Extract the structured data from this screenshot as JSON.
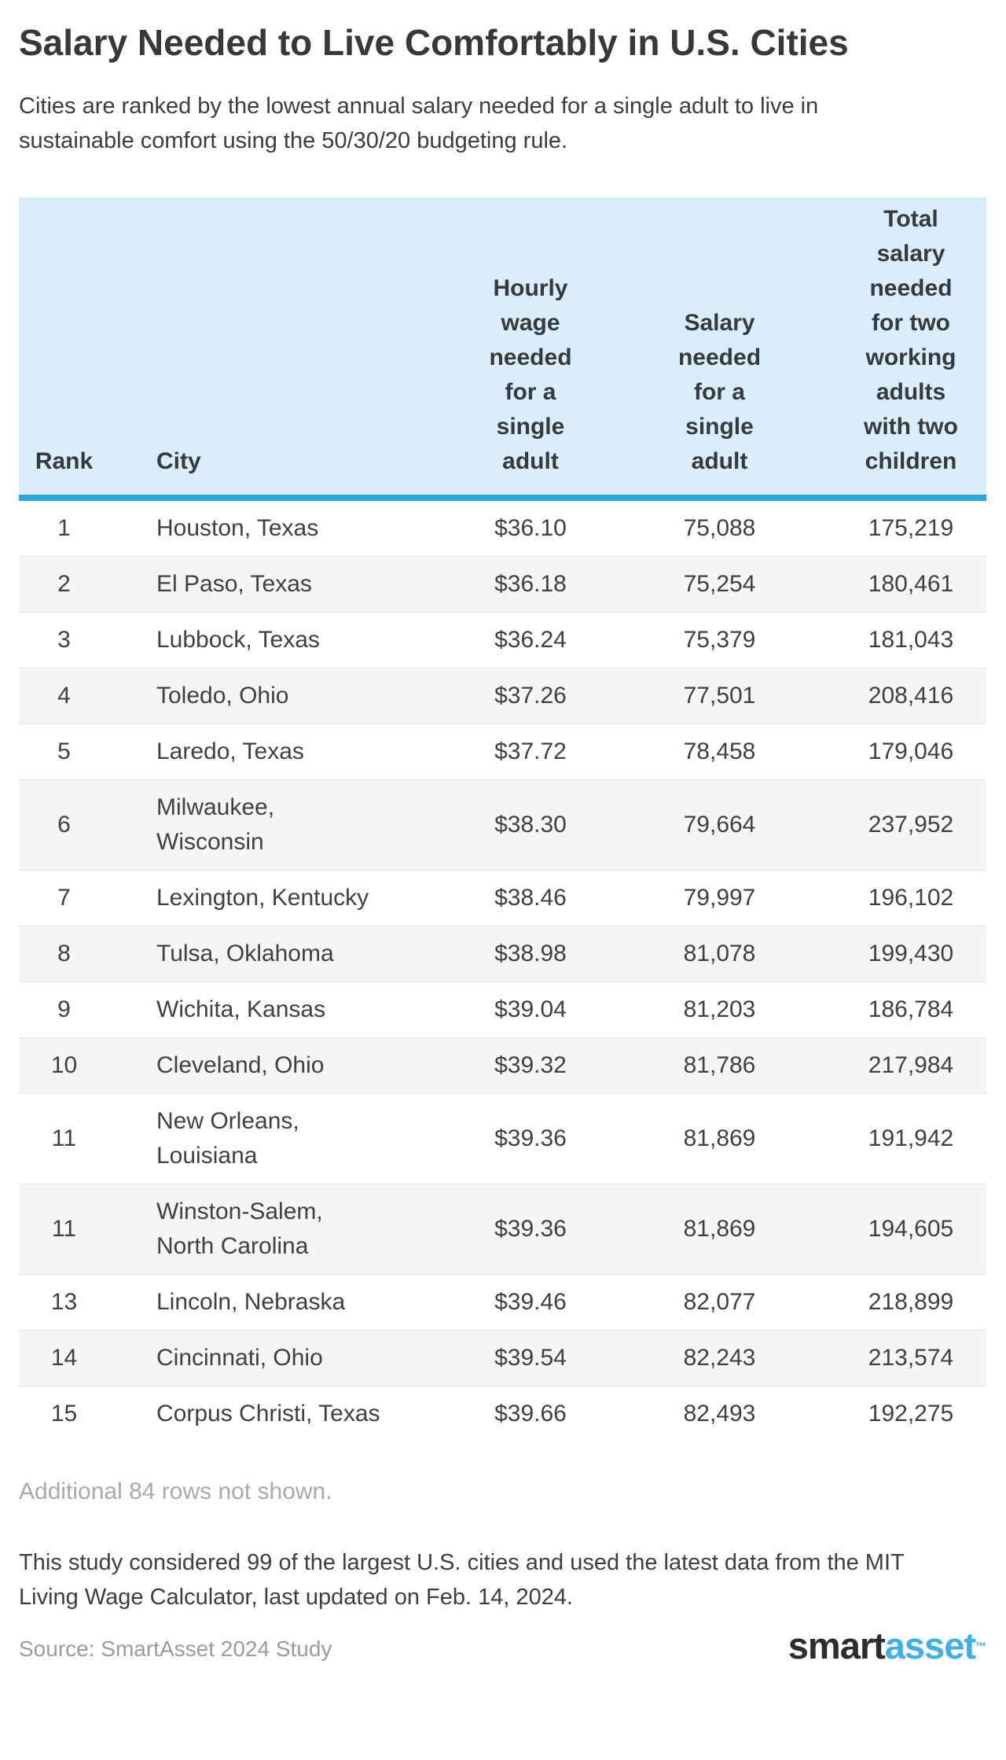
{
  "page": {
    "title": "Salary Needed to Live Comfortably in U.S. Cities",
    "subtitle": "Cities are ranked by the lowest annual salary needed for a single adult to live in sustainable comfort using the 50/30/20 budgeting rule.",
    "rows_note": "Additional 84 rows not shown.",
    "footnote": "This study considered 99 of the largest U.S. cities and used the latest data from the MIT Living Wage Calculator, last updated on Feb. 14, 2024.",
    "source": "Source: SmartAsset 2024 Study",
    "logo": {
      "part1": "smart",
      "part2": "asset",
      "tm": "™"
    }
  },
  "colors": {
    "header_background": "#d9edfb",
    "header_rule_blue": "#2fa5dc",
    "row_stripe": "#f5f5f5",
    "row_border": "#e4e4e4",
    "body_text": "#3e4043",
    "muted_text": "#a9a9a9",
    "source_text": "#9b9b9b",
    "logo_dark": "#2b2d30",
    "logo_blue": "#3fb1e8"
  },
  "chart_data": {
    "type": "table",
    "title": "Salary Needed to Live Comfortably in U.S. Cities",
    "columns": [
      "Rank",
      "City",
      "Hourly wage needed for a single adult",
      "Salary needed for a single adult",
      "Total salary needed for two working adults with two children"
    ],
    "rows": [
      {
        "rank": "1",
        "city": "Houston, Texas",
        "hourly": "$36.10",
        "salary": "75,088",
        "total": "175,219"
      },
      {
        "rank": "2",
        "city": "El Paso, Texas",
        "hourly": "$36.18",
        "salary": "75,254",
        "total": "180,461"
      },
      {
        "rank": "3",
        "city": "Lubbock, Texas",
        "hourly": "$36.24",
        "salary": "75,379",
        "total": "181,043"
      },
      {
        "rank": "4",
        "city": "Toledo, Ohio",
        "hourly": "$37.26",
        "salary": "77,501",
        "total": "208,416"
      },
      {
        "rank": "5",
        "city": "Laredo, Texas",
        "hourly": "$37.72",
        "salary": "78,458",
        "total": "179,046"
      },
      {
        "rank": "6",
        "city": "Milwaukee, Wisconsin",
        "hourly": "$38.30",
        "salary": "79,664",
        "total": "237,952"
      },
      {
        "rank": "7",
        "city": "Lexington, Kentucky",
        "hourly": "$38.46",
        "salary": "79,997",
        "total": "196,102"
      },
      {
        "rank": "8",
        "city": "Tulsa, Oklahoma",
        "hourly": "$38.98",
        "salary": "81,078",
        "total": "199,430"
      },
      {
        "rank": "9",
        "city": "Wichita, Kansas",
        "hourly": "$39.04",
        "salary": "81,203",
        "total": "186,784"
      },
      {
        "rank": "10",
        "city": "Cleveland, Ohio",
        "hourly": "$39.32",
        "salary": "81,786",
        "total": "217,984"
      },
      {
        "rank": "11",
        "city": "New Orleans, Louisiana",
        "hourly": "$39.36",
        "salary": "81,869",
        "total": "191,942"
      },
      {
        "rank": "11",
        "city": "Winston-Salem, North Carolina",
        "hourly": "$39.36",
        "salary": "81,869",
        "total": "194,605"
      },
      {
        "rank": "13",
        "city": "Lincoln, Nebraska",
        "hourly": "$39.46",
        "salary": "82,077",
        "total": "218,899"
      },
      {
        "rank": "14",
        "city": "Cincinnati, Ohio",
        "hourly": "$39.54",
        "salary": "82,243",
        "total": "213,574"
      },
      {
        "rank": "15",
        "city": "Corpus Christi, Texas",
        "hourly": "$39.66",
        "salary": "82,493",
        "total": "192,275"
      }
    ]
  }
}
